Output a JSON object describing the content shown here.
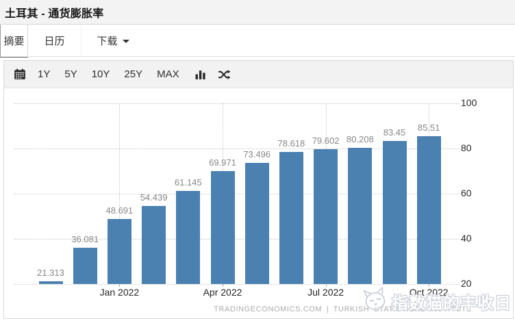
{
  "header": {
    "title": "土耳其 - 通货膨胀率"
  },
  "tabs": [
    {
      "label": "摘要",
      "active": true
    },
    {
      "label": "日历",
      "active": false
    },
    {
      "label": "下载",
      "active": false,
      "has_dropdown": true
    }
  ],
  "toolbar": {
    "icons": [
      "calendar-icon",
      "column-chart-icon",
      "shuffle-compare-icon"
    ],
    "ranges": [
      "1Y",
      "5Y",
      "10Y",
      "25Y",
      "MAX"
    ]
  },
  "chart_data": {
    "type": "bar",
    "title": "土耳其 - 通货膨胀率",
    "values": [
      21.313,
      36.081,
      48.691,
      54.439,
      61.145,
      69.971,
      73.496,
      78.618,
      79.602,
      80.208,
      83.45,
      85.51
    ],
    "value_labels": [
      "21.313",
      "36.081",
      "48.691",
      "54.439",
      "61.145",
      "69.971",
      "73.496",
      "78.618",
      "79.602",
      "80.208",
      "83.45",
      "85.51"
    ],
    "x_ticks": [
      {
        "index": 2,
        "label": "Jan 2022"
      },
      {
        "index": 5,
        "label": "Apr 2022"
      },
      {
        "index": 8,
        "label": "Jul 2022"
      },
      {
        "index": 11,
        "label": "Oct 2022"
      }
    ],
    "y_ticks": [
      20,
      40,
      60,
      80,
      100
    ],
    "ylim": [
      20,
      100
    ],
    "y_axis_side": "right",
    "grid": "dotted",
    "bar_color": "#4a81b1",
    "legend": "none"
  },
  "footer": {
    "attribution": "TRADINGECONOMICS.COM  |  TURKISH  STATISTICAL  INSTITUTE"
  },
  "watermark": {
    "text": "指数猫的丰收日",
    "icon": "cat-face-icon"
  }
}
